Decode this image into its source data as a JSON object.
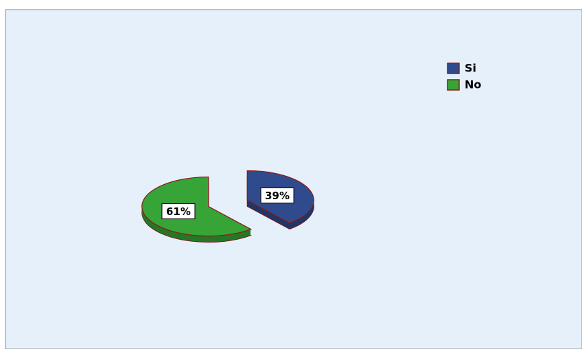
{
  "chart_data": {
    "type": "pie",
    "categories": [
      "Si",
      "No"
    ],
    "values": [
      39,
      61
    ],
    "value_labels": [
      "39%",
      "61%"
    ],
    "colors": [
      "#2f4b8e",
      "#36a436"
    ],
    "legend": "top-right"
  }
}
